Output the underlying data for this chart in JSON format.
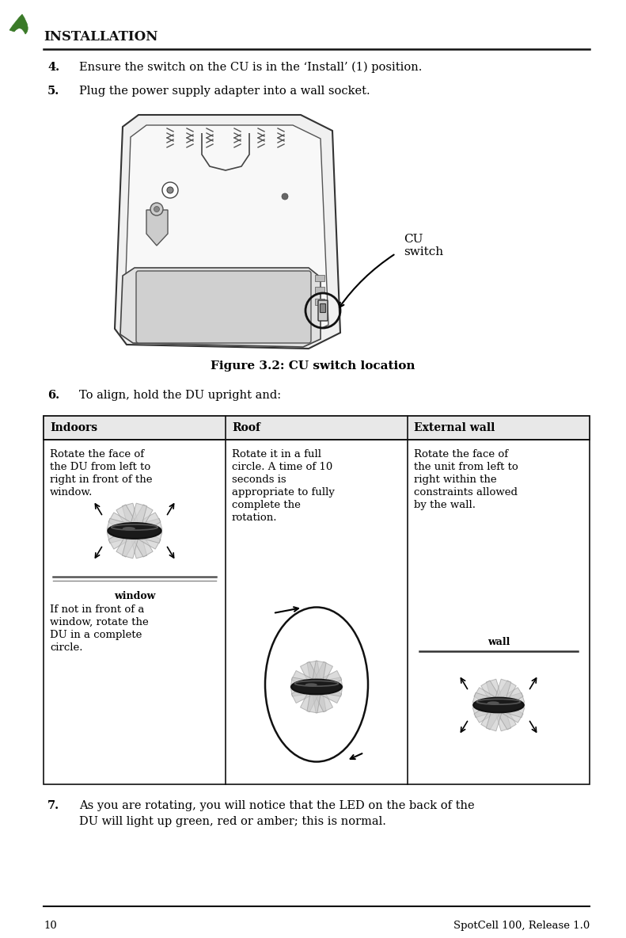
{
  "page_number": "10",
  "footer_right": "SpotCell 100, Release 1.0",
  "header_section": "INSTALLATION",
  "item4_text": "Ensure the switch on the CU is in the ‘Install’ (1) position.",
  "item5_text": "Plug the power supply adapter into a wall socket.",
  "figure_caption": "Figure 3.2: CU switch location",
  "cu_switch_label": "CU\nswitch",
  "item6_text": "To align, hold the DU upright and:",
  "item7_line1": "As you are rotating, you will notice that the LED on the back of the",
  "item7_line2": "DU will light up green, red or amber; this is normal.",
  "table_headers": [
    "Indoors",
    "Roof",
    "External wall"
  ],
  "table_col1_text1_lines": [
    "Rotate the face of",
    "the DU from left to",
    "right in front of the",
    "window."
  ],
  "table_col1_text2_lines": [
    "If not in front of a",
    "window, rotate the",
    "DU in a complete",
    "circle."
  ],
  "table_col1_sublabel": "window",
  "table_col2_text_lines": [
    "Rotate it in a full",
    "circle. A time of 10",
    "seconds is",
    "appropriate to fully",
    "complete the",
    "rotation."
  ],
  "table_col3_text_lines": [
    "Rotate the face of",
    "the unit from left to",
    "right within the",
    "constraints allowed",
    "by the wall."
  ],
  "table_col3_sublabel": "wall",
  "bg_color": "#ffffff",
  "text_color": "#000000",
  "logo_green": "#3a7a28",
  "body_font_size": 10.5,
  "small_font_size": 9.5,
  "header_font_size": 12,
  "caption_font_size": 11,
  "footer_font_size": 9.5,
  "table_font_size": 9.5,
  "table_header_font_size": 10
}
